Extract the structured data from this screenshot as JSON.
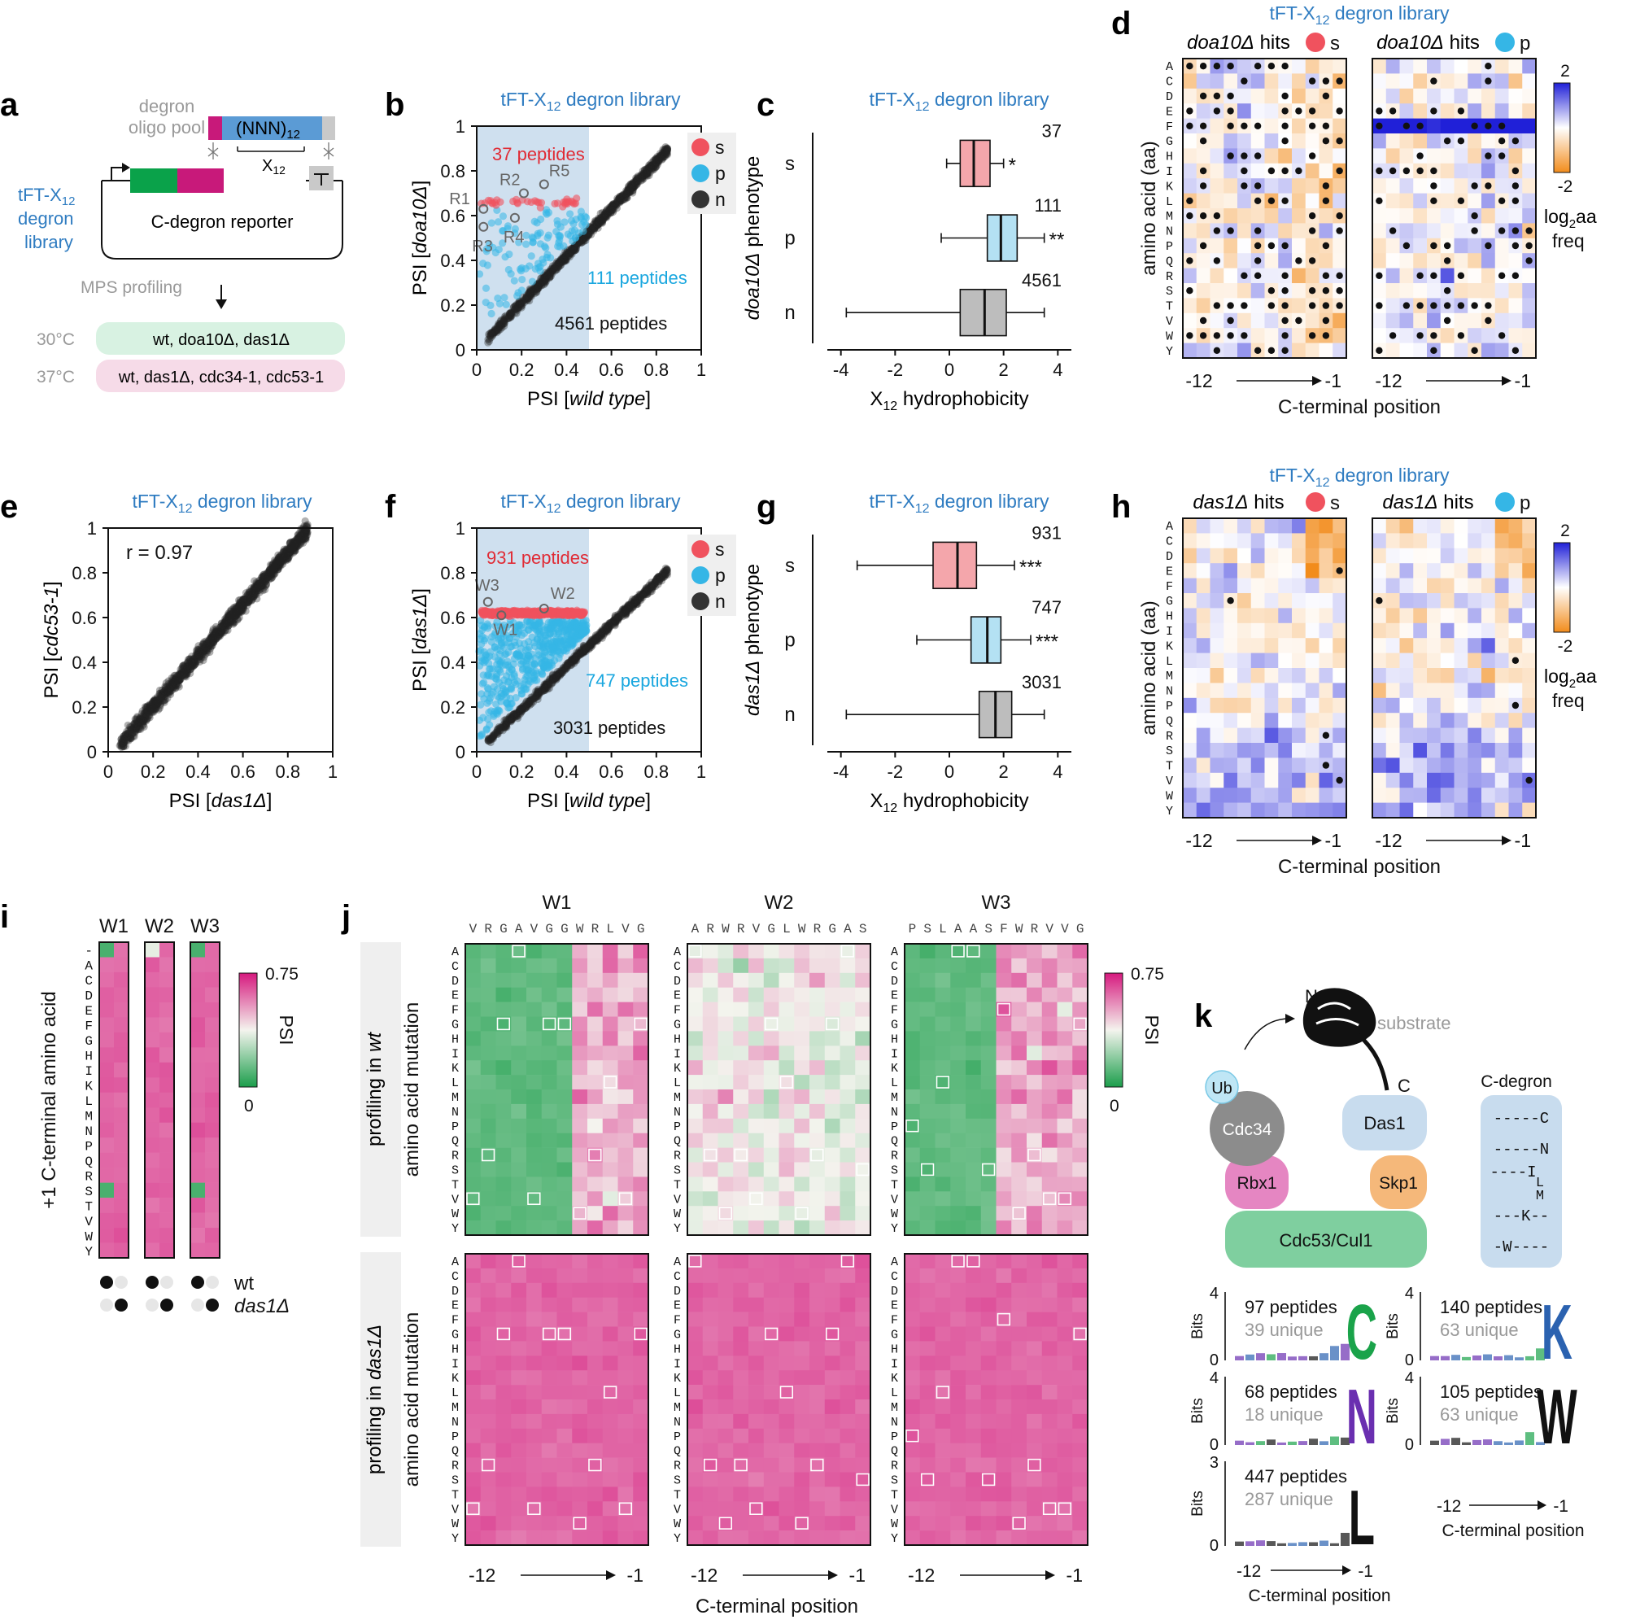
{
  "panel_letters": [
    "a",
    "b",
    "c",
    "d",
    "e",
    "f",
    "g",
    "h",
    "i",
    "j",
    "k"
  ],
  "library_title": "tFT-X",
  "library_sub": "12",
  "library_title_tail": " degron library",
  "panel_a": {
    "oligo_pool": [
      "degron",
      "oligo pool"
    ],
    "nnn": "(NNN)",
    "nnn_sub": "12",
    "x12": "X",
    "x12_sub": "12",
    "library_label": [
      "tFT-X",
      "degron",
      "library"
    ],
    "library_label_sub": "12",
    "reporter": "C-degron reporter",
    "mps": "MPS profiling",
    "temp30": "30°C",
    "temp37": "37°C",
    "strains30": "wt, doa10Δ, das1Δ",
    "strains37": "wt, das1Δ, cdc34-1, cdc53-1",
    "colors": {
      "green": "#0aa24a",
      "magenta": "#c8197a",
      "blue": "#5b9bd5",
      "box30": "#d8f2e2",
      "box37": "#f6dbe8"
    }
  },
  "legend": [
    {
      "key": "s",
      "color": "#f0525e"
    },
    {
      "key": "p",
      "color": "#35b6e6"
    },
    {
      "key": "n",
      "color": "#333333"
    }
  ],
  "chart_data": [
    {
      "id": "b",
      "type": "scatter",
      "xlabel_pre": "PSI [",
      "xlabel_it": "wild type",
      "xlabel_post": "]",
      "ylabel_pre": "PSI [",
      "ylabel_it": "doa10Δ",
      "ylabel_post": "]",
      "xlim": [
        0,
        1
      ],
      "ylim": [
        0,
        1
      ],
      "ticks": [
        "0",
        "0.2",
        "0.4",
        "0.6",
        "0.8",
        "1"
      ],
      "shaded_x_range": [
        0,
        0.5
      ],
      "counts": [
        {
          "text": "37 peptides",
          "color": "#e02b35"
        },
        {
          "text": "111 peptides",
          "color": "#1aa7df"
        },
        {
          "text": "4561 peptides",
          "color": "#111111"
        }
      ],
      "labeled_points": [
        {
          "name": "R1",
          "x": 0.03,
          "y": 0.63
        },
        {
          "name": "R2",
          "x": 0.21,
          "y": 0.7
        },
        {
          "name": "R3",
          "x": 0.03,
          "y": 0.55
        },
        {
          "name": "R4",
          "x": 0.17,
          "y": 0.59
        },
        {
          "name": "R5",
          "x": 0.3,
          "y": 0.74
        }
      ]
    },
    {
      "id": "c",
      "type": "boxplot",
      "ylabel_it": "doa10Δ",
      "ylabel_post": " phenotype",
      "xlabel": "X",
      "xlabel_sub": "12",
      "xlabel_tail": " hydrophobicity",
      "xlim": [
        -4.5,
        4.5
      ],
      "ticks": [
        "-4",
        "-2",
        "0",
        "2",
        "4"
      ],
      "groups": [
        {
          "name": "s",
          "n": "37",
          "sig": "*",
          "min": -0.1,
          "q1": 0.4,
          "median": 0.9,
          "q3": 1.5,
          "max": 2.0,
          "color": "#f4a6ab"
        },
        {
          "name": "p",
          "n": "111",
          "sig": "**",
          "min": -0.3,
          "q1": 1.4,
          "median": 1.9,
          "q3": 2.5,
          "max": 3.5,
          "color": "#b4e1f3"
        },
        {
          "name": "n",
          "n": "4561",
          "sig": "",
          "min": -3.8,
          "q1": 0.4,
          "median": 1.3,
          "q3": 2.1,
          "max": 3.5,
          "color": "#bdbdbd"
        }
      ]
    },
    {
      "id": "e",
      "type": "scatter",
      "r_text": "r = 0.97",
      "xlabel_pre": "PSI [",
      "xlabel_it": "das1Δ",
      "xlabel_post": "]",
      "ylabel_pre": "PSI [",
      "ylabel_it": "cdc53-1",
      "ylabel_post": "]",
      "xlim": [
        0,
        1
      ],
      "ylim": [
        0,
        1
      ],
      "ticks": [
        "0",
        "0.2",
        "0.4",
        "0.6",
        "0.8",
        "1"
      ]
    },
    {
      "id": "f",
      "type": "scatter",
      "xlabel_pre": "PSI [",
      "xlabel_it": "wild type",
      "xlabel_post": "]",
      "ylabel_pre": "PSI [",
      "ylabel_it": "das1Δ",
      "ylabel_post": "]",
      "xlim": [
        0,
        1
      ],
      "ylim": [
        0,
        1
      ],
      "ticks": [
        "0",
        "0.2",
        "0.4",
        "0.6",
        "0.8",
        "1"
      ],
      "shaded_x_range": [
        0,
        0.5
      ],
      "counts": [
        {
          "text": "931 peptides",
          "color": "#e02b35"
        },
        {
          "text": "747 peptides",
          "color": "#1aa7df"
        },
        {
          "text": "3031 peptides",
          "color": "#111111"
        }
      ],
      "labeled_points": [
        {
          "name": "W1",
          "x": 0.11,
          "y": 0.61
        },
        {
          "name": "W2",
          "x": 0.3,
          "y": 0.64
        },
        {
          "name": "W3",
          "x": 0.05,
          "y": 0.67
        }
      ]
    },
    {
      "id": "g",
      "type": "boxplot",
      "ylabel_it": "das1Δ",
      "ylabel_post": " phenotype",
      "xlabel": "X",
      "xlabel_sub": "12",
      "xlabel_tail": " hydrophobicity",
      "xlim": [
        -4.5,
        4.5
      ],
      "ticks": [
        "-4",
        "-2",
        "0",
        "2",
        "4"
      ],
      "groups": [
        {
          "name": "s",
          "n": "931",
          "sig": "***",
          "min": -3.4,
          "q1": -0.6,
          "median": 0.3,
          "q3": 1.0,
          "max": 2.4,
          "color": "#f4a6ab"
        },
        {
          "name": "p",
          "n": "747",
          "sig": "***",
          "min": -1.2,
          "q1": 0.8,
          "median": 1.4,
          "q3": 1.9,
          "max": 3.0,
          "color": "#b4e1f3"
        },
        {
          "name": "n",
          "n": "3031",
          "sig": "",
          "min": -3.8,
          "q1": 1.1,
          "median": 1.7,
          "q3": 2.3,
          "max": 3.5,
          "color": "#bdbdbd"
        }
      ]
    },
    {
      "id": "d",
      "type": "heatmap",
      "panel_titles": [
        {
          "it": "doa10Δ",
          "rest": " hits",
          "key": "s",
          "color": "#f0525e"
        },
        {
          "it": "doa10Δ",
          "rest": " hits",
          "key": "p",
          "color": "#35b6e6"
        }
      ],
      "rows": [
        "A",
        "C",
        "D",
        "E",
        "F",
        "G",
        "H",
        "I",
        "K",
        "L",
        "M",
        "N",
        "P",
        "Q",
        "R",
        "S",
        "T",
        "V",
        "W",
        "Y"
      ],
      "colorbar": {
        "max": "2",
        "min": "-2",
        "label1": "log",
        "label1_sub": "2",
        "label1_tail": "aa",
        "label2": "freq"
      },
      "ylabel": "amino acid (aa)",
      "xlabel": "C-terminal position",
      "x_left": "-12",
      "x_right": "-1"
    },
    {
      "id": "h",
      "type": "heatmap",
      "panel_titles": [
        {
          "it": "das1Δ",
          "rest": " hits",
          "key": "s",
          "color": "#f0525e"
        },
        {
          "it": "das1Δ",
          "rest": " hits",
          "key": "p",
          "color": "#35b6e6"
        }
      ],
      "rows": [
        "A",
        "C",
        "D",
        "E",
        "F",
        "G",
        "H",
        "I",
        "K",
        "L",
        "M",
        "N",
        "P",
        "Q",
        "R",
        "S",
        "T",
        "V",
        "W",
        "Y"
      ],
      "colorbar": {
        "max": "2",
        "min": "-2",
        "label1": "log",
        "label1_sub": "2",
        "label1_tail": "aa",
        "label2": "freq"
      },
      "ylabel": "amino acid (aa)",
      "xlabel": "C-terminal position",
      "x_left": "-12",
      "x_right": "-1"
    },
    {
      "id": "i",
      "type": "heatmap",
      "columns": [
        "W1",
        "W2",
        "W3"
      ],
      "rows": [
        "-",
        "A",
        "C",
        "D",
        "E",
        "F",
        "G",
        "H",
        "I",
        "K",
        "L",
        "M",
        "N",
        "P",
        "Q",
        "R",
        "S",
        "T",
        "V",
        "W",
        "Y"
      ],
      "ylabel": "+1 C-terminal amino acid",
      "colorbar": {
        "max": "0.75",
        "min": "0",
        "label": "PSI"
      },
      "legend_rows": [
        {
          "label": "wt",
          "it": false
        },
        {
          "label": "das1Δ",
          "it": true
        }
      ]
    },
    {
      "id": "j",
      "type": "heatmap",
      "columns": [
        {
          "name": "W1",
          "seq": "VRGAVGGWRLVG"
        },
        {
          "name": "W2",
          "seq": "ARWRVGLWRGAS"
        },
        {
          "name": "W3",
          "seq": "PSLAASFWRVVG"
        }
      ],
      "rows": [
        "A",
        "C",
        "D",
        "E",
        "F",
        "G",
        "H",
        "I",
        "K",
        "L",
        "M",
        "N",
        "P",
        "Q",
        "R",
        "S",
        "T",
        "V",
        "W",
        "Y"
      ],
      "row_panels": [
        {
          "pre": "profiling in ",
          "it": "wt",
          "ylabel": "amino acid mutation"
        },
        {
          "pre": "profiling in ",
          "it": "das1Δ",
          "ylabel": "amino acid mutation"
        }
      ],
      "colorbar": {
        "max": "0.75",
        "min": "0",
        "label": "PSI"
      },
      "xlabel": "C-terminal position",
      "x_left": "-12",
      "x_right": "-1"
    }
  ],
  "panel_k": {
    "substrate": "substrate",
    "N": "N",
    "C": "C",
    "ub": "Ub",
    "cdc34": "Cdc34",
    "rbx1": "Rbx1",
    "das1": "Das1",
    "skp1": "Skp1",
    "cul1": "Cdc53/Cul1",
    "cdegron_title": "C-degron",
    "cdegron_lines": [
      "-----C",
      "-----N",
      "----I",
      "L",
      "M",
      "---K--",
      "-W----"
    ],
    "logos": [
      {
        "count": "97 peptides",
        "unique": "39 unique",
        "letter": "C",
        "color": "#1aa34a",
        "ymax": "4"
      },
      {
        "count": "140 peptides",
        "unique": "63 unique",
        "letter": "K",
        "color": "#2b62b0",
        "ymax": "4"
      },
      {
        "count": "68 peptides",
        "unique": "18 unique",
        "letter": "N",
        "color": "#6a2fb0",
        "ymax": "4"
      },
      {
        "count": "105 peptides",
        "unique": "63 unique",
        "letter": "W",
        "color": "#111111",
        "ymax": "4"
      },
      {
        "count": "447 peptides",
        "unique": "287 unique",
        "letter": "L",
        "color": "#111111",
        "ymax": "3"
      }
    ],
    "bits": "Bits",
    "xlabel": "C-terminal position",
    "x_left": "-12",
    "x_right": "-1",
    "colors": {
      "ub": "#bfe6f5",
      "cdc34": "#8c8c8c",
      "rbx1": "#e586c2",
      "das1": "#c8dcee",
      "skp1": "#f5b87a",
      "cul1": "#7fcf9f",
      "cdeg": "#c8dcee"
    }
  }
}
